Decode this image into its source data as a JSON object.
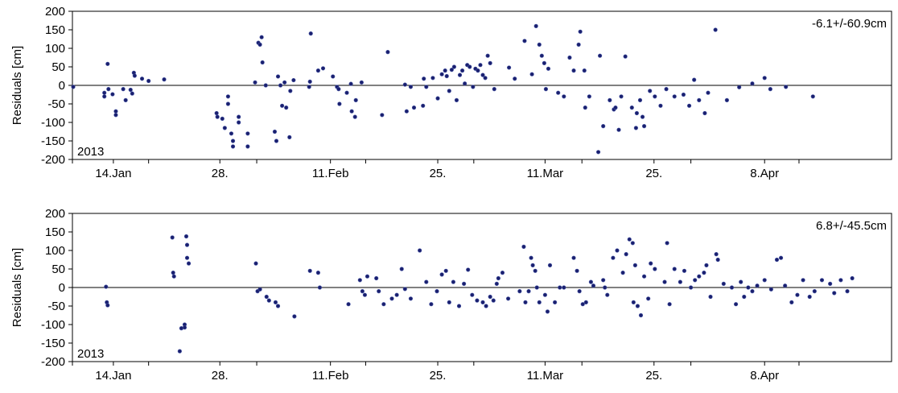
{
  "chart_data": [
    {
      "type": "scatter",
      "ylabel": "Residuals [cm]",
      "ylim": [
        -200,
        200
      ],
      "yticks": [
        "200",
        "150",
        "100",
        "50",
        "0",
        "-50",
        "-100",
        "-150",
        "-200"
      ],
      "xlim": [
        0,
        100
      ],
      "xticks": [
        {
          "x": 5,
          "label": "14.Jan"
        },
        {
          "x": 18,
          "label": "28."
        },
        {
          "x": 31.5,
          "label": "11.Feb"
        },
        {
          "x": 44.6,
          "label": "25."
        },
        {
          "x": 57.7,
          "label": "11.Mar"
        },
        {
          "x": 71,
          "label": "25."
        },
        {
          "x": 84.5,
          "label": "8.Apr"
        }
      ],
      "minor_ticks": [
        0,
        9.3,
        22.5,
        35.8,
        49,
        62.2,
        75.5,
        88.7
      ],
      "year_label": "2013",
      "stat_label": "-6.1+/-60.9cm",
      "points": [
        [
          0.1,
          -4
        ],
        [
          3.9,
          -20
        ],
        [
          3.9,
          -30
        ],
        [
          4.3,
          58
        ],
        [
          4.4,
          -10
        ],
        [
          4.9,
          -24
        ],
        [
          5.3,
          -70
        ],
        [
          5.3,
          -80
        ],
        [
          6.2,
          -10
        ],
        [
          6.5,
          -40
        ],
        [
          7.1,
          -12
        ],
        [
          7.3,
          -22
        ],
        [
          7.5,
          34
        ],
        [
          7.6,
          26
        ],
        [
          8.5,
          18
        ],
        [
          9.3,
          12
        ],
        [
          11.2,
          16
        ],
        [
          17.6,
          -75
        ],
        [
          17.7,
          -85
        ],
        [
          18.3,
          -90
        ],
        [
          18.6,
          -115
        ],
        [
          19.0,
          -50
        ],
        [
          19.0,
          -30
        ],
        [
          19.4,
          -130
        ],
        [
          19.6,
          -150
        ],
        [
          19.6,
          -165
        ],
        [
          20.3,
          -85
        ],
        [
          20.3,
          -100
        ],
        [
          21.4,
          -130
        ],
        [
          21.4,
          -165
        ],
        [
          22.3,
          8
        ],
        [
          22.7,
          115
        ],
        [
          22.9,
          110
        ],
        [
          23.1,
          130
        ],
        [
          23.2,
          62
        ],
        [
          23.6,
          0
        ],
        [
          24.7,
          -125
        ],
        [
          24.9,
          -150
        ],
        [
          25.1,
          24
        ],
        [
          25.4,
          0
        ],
        [
          25.6,
          -55
        ],
        [
          25.9,
          8
        ],
        [
          26.1,
          -60
        ],
        [
          26.5,
          -140
        ],
        [
          26.6,
          -15
        ],
        [
          27.0,
          14
        ],
        [
          28.9,
          -4
        ],
        [
          29.0,
          10
        ],
        [
          29.1,
          140
        ],
        [
          30.0,
          40
        ],
        [
          30.6,
          46
        ],
        [
          31.8,
          24
        ],
        [
          32.3,
          -4
        ],
        [
          32.5,
          -10
        ],
        [
          32.6,
          -50
        ],
        [
          33.5,
          -20
        ],
        [
          34.0,
          4
        ],
        [
          34.1,
          -70
        ],
        [
          34.5,
          -85
        ],
        [
          34.6,
          -40
        ],
        [
          35.3,
          8
        ],
        [
          37.8,
          -80
        ],
        [
          38.5,
          90
        ],
        [
          40.6,
          2
        ],
        [
          40.8,
          -70
        ],
        [
          41.3,
          -4
        ],
        [
          41.7,
          -60
        ],
        [
          42.8,
          -55
        ],
        [
          42.9,
          18
        ],
        [
          43.2,
          -4
        ],
        [
          44.0,
          20
        ],
        [
          44.6,
          -35
        ],
        [
          45.1,
          30
        ],
        [
          45.5,
          40
        ],
        [
          45.7,
          25
        ],
        [
          46.0,
          -15
        ],
        [
          46.3,
          42
        ],
        [
          46.6,
          50
        ],
        [
          46.9,
          -40
        ],
        [
          47.3,
          28
        ],
        [
          47.6,
          40
        ],
        [
          47.9,
          5
        ],
        [
          48.2,
          55
        ],
        [
          48.5,
          50
        ],
        [
          48.9,
          -4
        ],
        [
          49.2,
          45
        ],
        [
          49.5,
          40
        ],
        [
          49.8,
          55
        ],
        [
          50.1,
          28
        ],
        [
          50.4,
          20
        ],
        [
          50.7,
          80
        ],
        [
          51.0,
          60
        ],
        [
          51.5,
          -10
        ],
        [
          53.3,
          48
        ],
        [
          54.0,
          18
        ],
        [
          55.2,
          120
        ],
        [
          56.1,
          30
        ],
        [
          56.6,
          160
        ],
        [
          57.0,
          110
        ],
        [
          57.3,
          80
        ],
        [
          57.6,
          60
        ],
        [
          57.8,
          -10
        ],
        [
          58.1,
          45
        ],
        [
          59.3,
          -20
        ],
        [
          60.0,
          -30
        ],
        [
          60.7,
          75
        ],
        [
          61.2,
          40
        ],
        [
          61.8,
          110
        ],
        [
          62.0,
          145
        ],
        [
          62.5,
          40
        ],
        [
          62.6,
          -60
        ],
        [
          63.1,
          -30
        ],
        [
          64.2,
          -180
        ],
        [
          64.4,
          80
        ],
        [
          64.8,
          -110
        ],
        [
          65.6,
          -40
        ],
        [
          66.1,
          -65
        ],
        [
          66.3,
          -60
        ],
        [
          66.7,
          -120
        ],
        [
          67.0,
          -30
        ],
        [
          67.5,
          78
        ],
        [
          68.3,
          -60
        ],
        [
          68.8,
          -115
        ],
        [
          68.9,
          -75
        ],
        [
          69.3,
          -40
        ],
        [
          69.6,
          -85
        ],
        [
          69.8,
          -110
        ],
        [
          70.5,
          -15
        ],
        [
          71.1,
          -30
        ],
        [
          71.8,
          -55
        ],
        [
          72.5,
          -10
        ],
        [
          73.5,
          -30
        ],
        [
          74.6,
          -25
        ],
        [
          75.3,
          -55
        ],
        [
          75.9,
          15
        ],
        [
          76.5,
          -40
        ],
        [
          77.2,
          -75
        ],
        [
          77.6,
          -20
        ],
        [
          78.5,
          150
        ],
        [
          79.9,
          -40
        ],
        [
          81.4,
          -5
        ],
        [
          83.0,
          5
        ],
        [
          84.5,
          20
        ],
        [
          85.2,
          -10
        ],
        [
          87.1,
          -4
        ],
        [
          90.4,
          -30
        ]
      ]
    },
    {
      "type": "scatter",
      "ylabel": "Residuals [cm]",
      "ylim": [
        -200,
        200
      ],
      "yticks": [
        "200",
        "150",
        "100",
        "50",
        "0",
        "-50",
        "-100",
        "-150",
        "-200"
      ],
      "xlim": [
        0,
        100
      ],
      "xticks": [
        {
          "x": 5,
          "label": "14.Jan"
        },
        {
          "x": 18,
          "label": "28."
        },
        {
          "x": 31.5,
          "label": "11.Feb"
        },
        {
          "x": 44.6,
          "label": "25."
        },
        {
          "x": 57.7,
          "label": "11.Mar"
        },
        {
          "x": 71,
          "label": "25."
        },
        {
          "x": 84.5,
          "label": "8.Apr"
        }
      ],
      "minor_ticks": [
        0,
        9.3,
        22.5,
        35.8,
        49,
        62.2,
        75.5,
        88.7
      ],
      "year_label": "2013",
      "stat_label": "6.8+/-45.5cm",
      "points": [
        [
          4.1,
          2
        ],
        [
          4.2,
          -40
        ],
        [
          4.3,
          -48
        ],
        [
          12.2,
          135
        ],
        [
          12.3,
          40
        ],
        [
          12.4,
          30
        ],
        [
          13.1,
          -172
        ],
        [
          13.3,
          -110
        ],
        [
          13.7,
          -100
        ],
        [
          13.7,
          -108
        ],
        [
          13.9,
          138
        ],
        [
          14.0,
          115
        ],
        [
          14.0,
          80
        ],
        [
          14.2,
          65
        ],
        [
          22.4,
          65
        ],
        [
          22.6,
          -10
        ],
        [
          22.9,
          -5
        ],
        [
          23.7,
          -25
        ],
        [
          24.0,
          -35
        ],
        [
          24.8,
          -40
        ],
        [
          25.1,
          -50
        ],
        [
          27.1,
          -78
        ],
        [
          29.0,
          45
        ],
        [
          30.0,
          40
        ],
        [
          30.2,
          0
        ],
        [
          33.7,
          -45
        ],
        [
          35.1,
          20
        ],
        [
          35.4,
          -10
        ],
        [
          35.7,
          -20
        ],
        [
          36.0,
          30
        ],
        [
          37.1,
          25
        ],
        [
          37.4,
          -10
        ],
        [
          38.0,
          -45
        ],
        [
          39.0,
          -30
        ],
        [
          39.6,
          -20
        ],
        [
          40.2,
          50
        ],
        [
          40.6,
          -4
        ],
        [
          41.3,
          -30
        ],
        [
          42.4,
          100
        ],
        [
          43.2,
          15
        ],
        [
          43.8,
          -45
        ],
        [
          44.5,
          -10
        ],
        [
          45.1,
          35
        ],
        [
          45.6,
          45
        ],
        [
          46.0,
          -40
        ],
        [
          46.5,
          15
        ],
        [
          47.2,
          -50
        ],
        [
          47.8,
          10
        ],
        [
          48.3,
          48
        ],
        [
          48.8,
          -20
        ],
        [
          49.4,
          -35
        ],
        [
          50.1,
          -40
        ],
        [
          50.5,
          -50
        ],
        [
          51.0,
          -25
        ],
        [
          51.4,
          -35
        ],
        [
          51.8,
          10
        ],
        [
          52.0,
          25
        ],
        [
          52.5,
          40
        ],
        [
          53.2,
          -30
        ],
        [
          54.6,
          -10
        ],
        [
          55.1,
          110
        ],
        [
          55.3,
          -40
        ],
        [
          55.7,
          -10
        ],
        [
          56.0,
          80
        ],
        [
          56.2,
          60
        ],
        [
          56.5,
          45
        ],
        [
          56.7,
          0
        ],
        [
          57.0,
          -40
        ],
        [
          57.7,
          -20
        ],
        [
          58.0,
          -65
        ],
        [
          58.3,
          60
        ],
        [
          58.9,
          -40
        ],
        [
          59.5,
          0
        ],
        [
          60.0,
          0
        ],
        [
          61.2,
          80
        ],
        [
          61.6,
          45
        ],
        [
          61.9,
          -10
        ],
        [
          62.3,
          -45
        ],
        [
          62.7,
          -40
        ],
        [
          63.3,
          15
        ],
        [
          63.6,
          5
        ],
        [
          64.8,
          20
        ],
        [
          65.0,
          0
        ],
        [
          65.3,
          -20
        ],
        [
          66.0,
          80
        ],
        [
          66.5,
          100
        ],
        [
          67.2,
          40
        ],
        [
          67.6,
          90
        ],
        [
          68.0,
          130
        ],
        [
          68.4,
          120
        ],
        [
          68.5,
          -40
        ],
        [
          68.7,
          60
        ],
        [
          69.0,
          -50
        ],
        [
          69.4,
          -75
        ],
        [
          69.8,
          30
        ],
        [
          70.3,
          -30
        ],
        [
          70.6,
          65
        ],
        [
          71.1,
          50
        ],
        [
          72.3,
          15
        ],
        [
          72.6,
          120
        ],
        [
          72.9,
          -45
        ],
        [
          73.5,
          50
        ],
        [
          74.2,
          15
        ],
        [
          74.7,
          45
        ],
        [
          75.5,
          0
        ],
        [
          76.0,
          20
        ],
        [
          76.5,
          30
        ],
        [
          77.1,
          40
        ],
        [
          77.4,
          60
        ],
        [
          77.9,
          -25
        ],
        [
          78.6,
          90
        ],
        [
          78.8,
          75
        ],
        [
          79.5,
          10
        ],
        [
          80.5,
          0
        ],
        [
          81.0,
          -45
        ],
        [
          81.6,
          15
        ],
        [
          82.0,
          -25
        ],
        [
          82.5,
          0
        ],
        [
          83.0,
          -10
        ],
        [
          83.6,
          5
        ],
        [
          84.5,
          20
        ],
        [
          85.3,
          -5
        ],
        [
          86.0,
          75
        ],
        [
          86.5,
          80
        ],
        [
          87.0,
          5
        ],
        [
          87.8,
          -40
        ],
        [
          88.5,
          -20
        ],
        [
          89.2,
          20
        ],
        [
          90.0,
          -25
        ],
        [
          90.6,
          -10
        ],
        [
          91.5,
          20
        ],
        [
          92.5,
          10
        ],
        [
          93.0,
          -15
        ],
        [
          93.8,
          20
        ],
        [
          94.6,
          -10
        ],
        [
          95.2,
          25
        ]
      ]
    }
  ]
}
